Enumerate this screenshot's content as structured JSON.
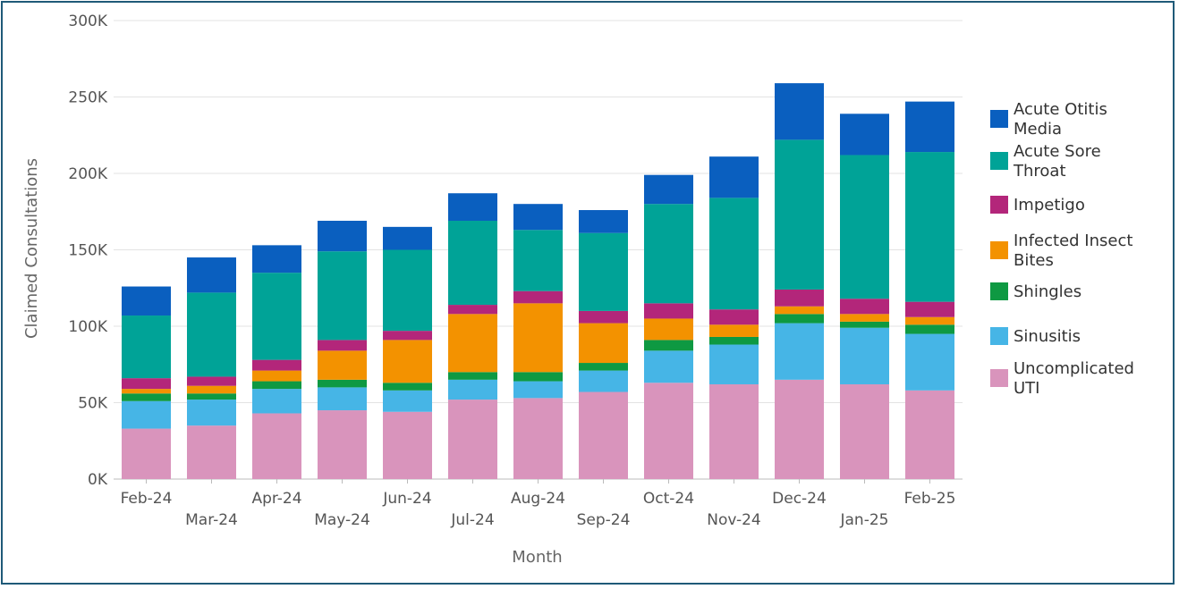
{
  "chart_data": {
    "type": "bar",
    "stacked": true,
    "xlabel": "Month",
    "ylabel": "Claimed Consultations",
    "ylim": [
      0,
      300000
    ],
    "yticks": [
      "0K",
      "50K",
      "100K",
      "150K",
      "200K",
      "250K",
      "300K"
    ],
    "grid": true,
    "legend_position": "right",
    "categories": [
      "Feb-24",
      "Mar-24",
      "Apr-24",
      "May-24",
      "Jun-24",
      "Jul-24",
      "Aug-24",
      "Sep-24",
      "Oct-24",
      "Nov-24",
      "Dec-24",
      "Jan-25",
      "Feb-25"
    ],
    "series": [
      {
        "name": "Uncomplicated UTI",
        "color": "#d994bc",
        "values": [
          33000,
          35000,
          43000,
          45000,
          44000,
          52000,
          53000,
          57000,
          63000,
          62000,
          65000,
          62000,
          58000
        ]
      },
      {
        "name": "Sinusitis",
        "color": "#46b5e6",
        "values": [
          18000,
          17000,
          16000,
          15000,
          14000,
          13000,
          11000,
          14000,
          21000,
          26000,
          37000,
          37000,
          37000
        ]
      },
      {
        "name": "Shingles",
        "color": "#0e9942",
        "values": [
          5000,
          4000,
          5000,
          5000,
          5000,
          5000,
          6000,
          5000,
          7000,
          5000,
          6000,
          4000,
          6000
        ]
      },
      {
        "name": "Infected Insect Bites",
        "color": "#f39200",
        "values": [
          3000,
          5000,
          7000,
          19000,
          28000,
          38000,
          45000,
          26000,
          14000,
          8000,
          5000,
          5000,
          5000
        ]
      },
      {
        "name": "Impetigo",
        "color": "#b3267a",
        "values": [
          7000,
          6000,
          7000,
          7000,
          6000,
          6000,
          8000,
          8000,
          10000,
          10000,
          11000,
          10000,
          10000
        ]
      },
      {
        "name": "Acute Sore Throat",
        "color": "#00a397",
        "values": [
          41000,
          55000,
          57000,
          58000,
          53000,
          55000,
          40000,
          51000,
          65000,
          73000,
          98000,
          94000,
          98000
        ]
      },
      {
        "name": "Acute Otitis Media",
        "color": "#0a5fbf",
        "values": [
          19000,
          23000,
          18000,
          20000,
          15000,
          18000,
          17000,
          15000,
          19000,
          27000,
          37000,
          27000,
          33000
        ]
      }
    ],
    "legend_order": [
      "Acute Otitis Media",
      "Acute Sore Throat",
      "Impetigo",
      "Infected Insect Bites",
      "Shingles",
      "Sinusitis",
      "Uncomplicated UTI"
    ],
    "legend_labels": [
      [
        "Acute Otitis",
        "Media"
      ],
      [
        "Acute Sore",
        "Throat"
      ],
      [
        "Impetigo"
      ],
      [
        "Infected Insect",
        "Bites"
      ],
      [
        "Shingles"
      ],
      [
        "Sinusitis"
      ],
      [
        "Uncomplicated",
        "UTI"
      ]
    ]
  }
}
